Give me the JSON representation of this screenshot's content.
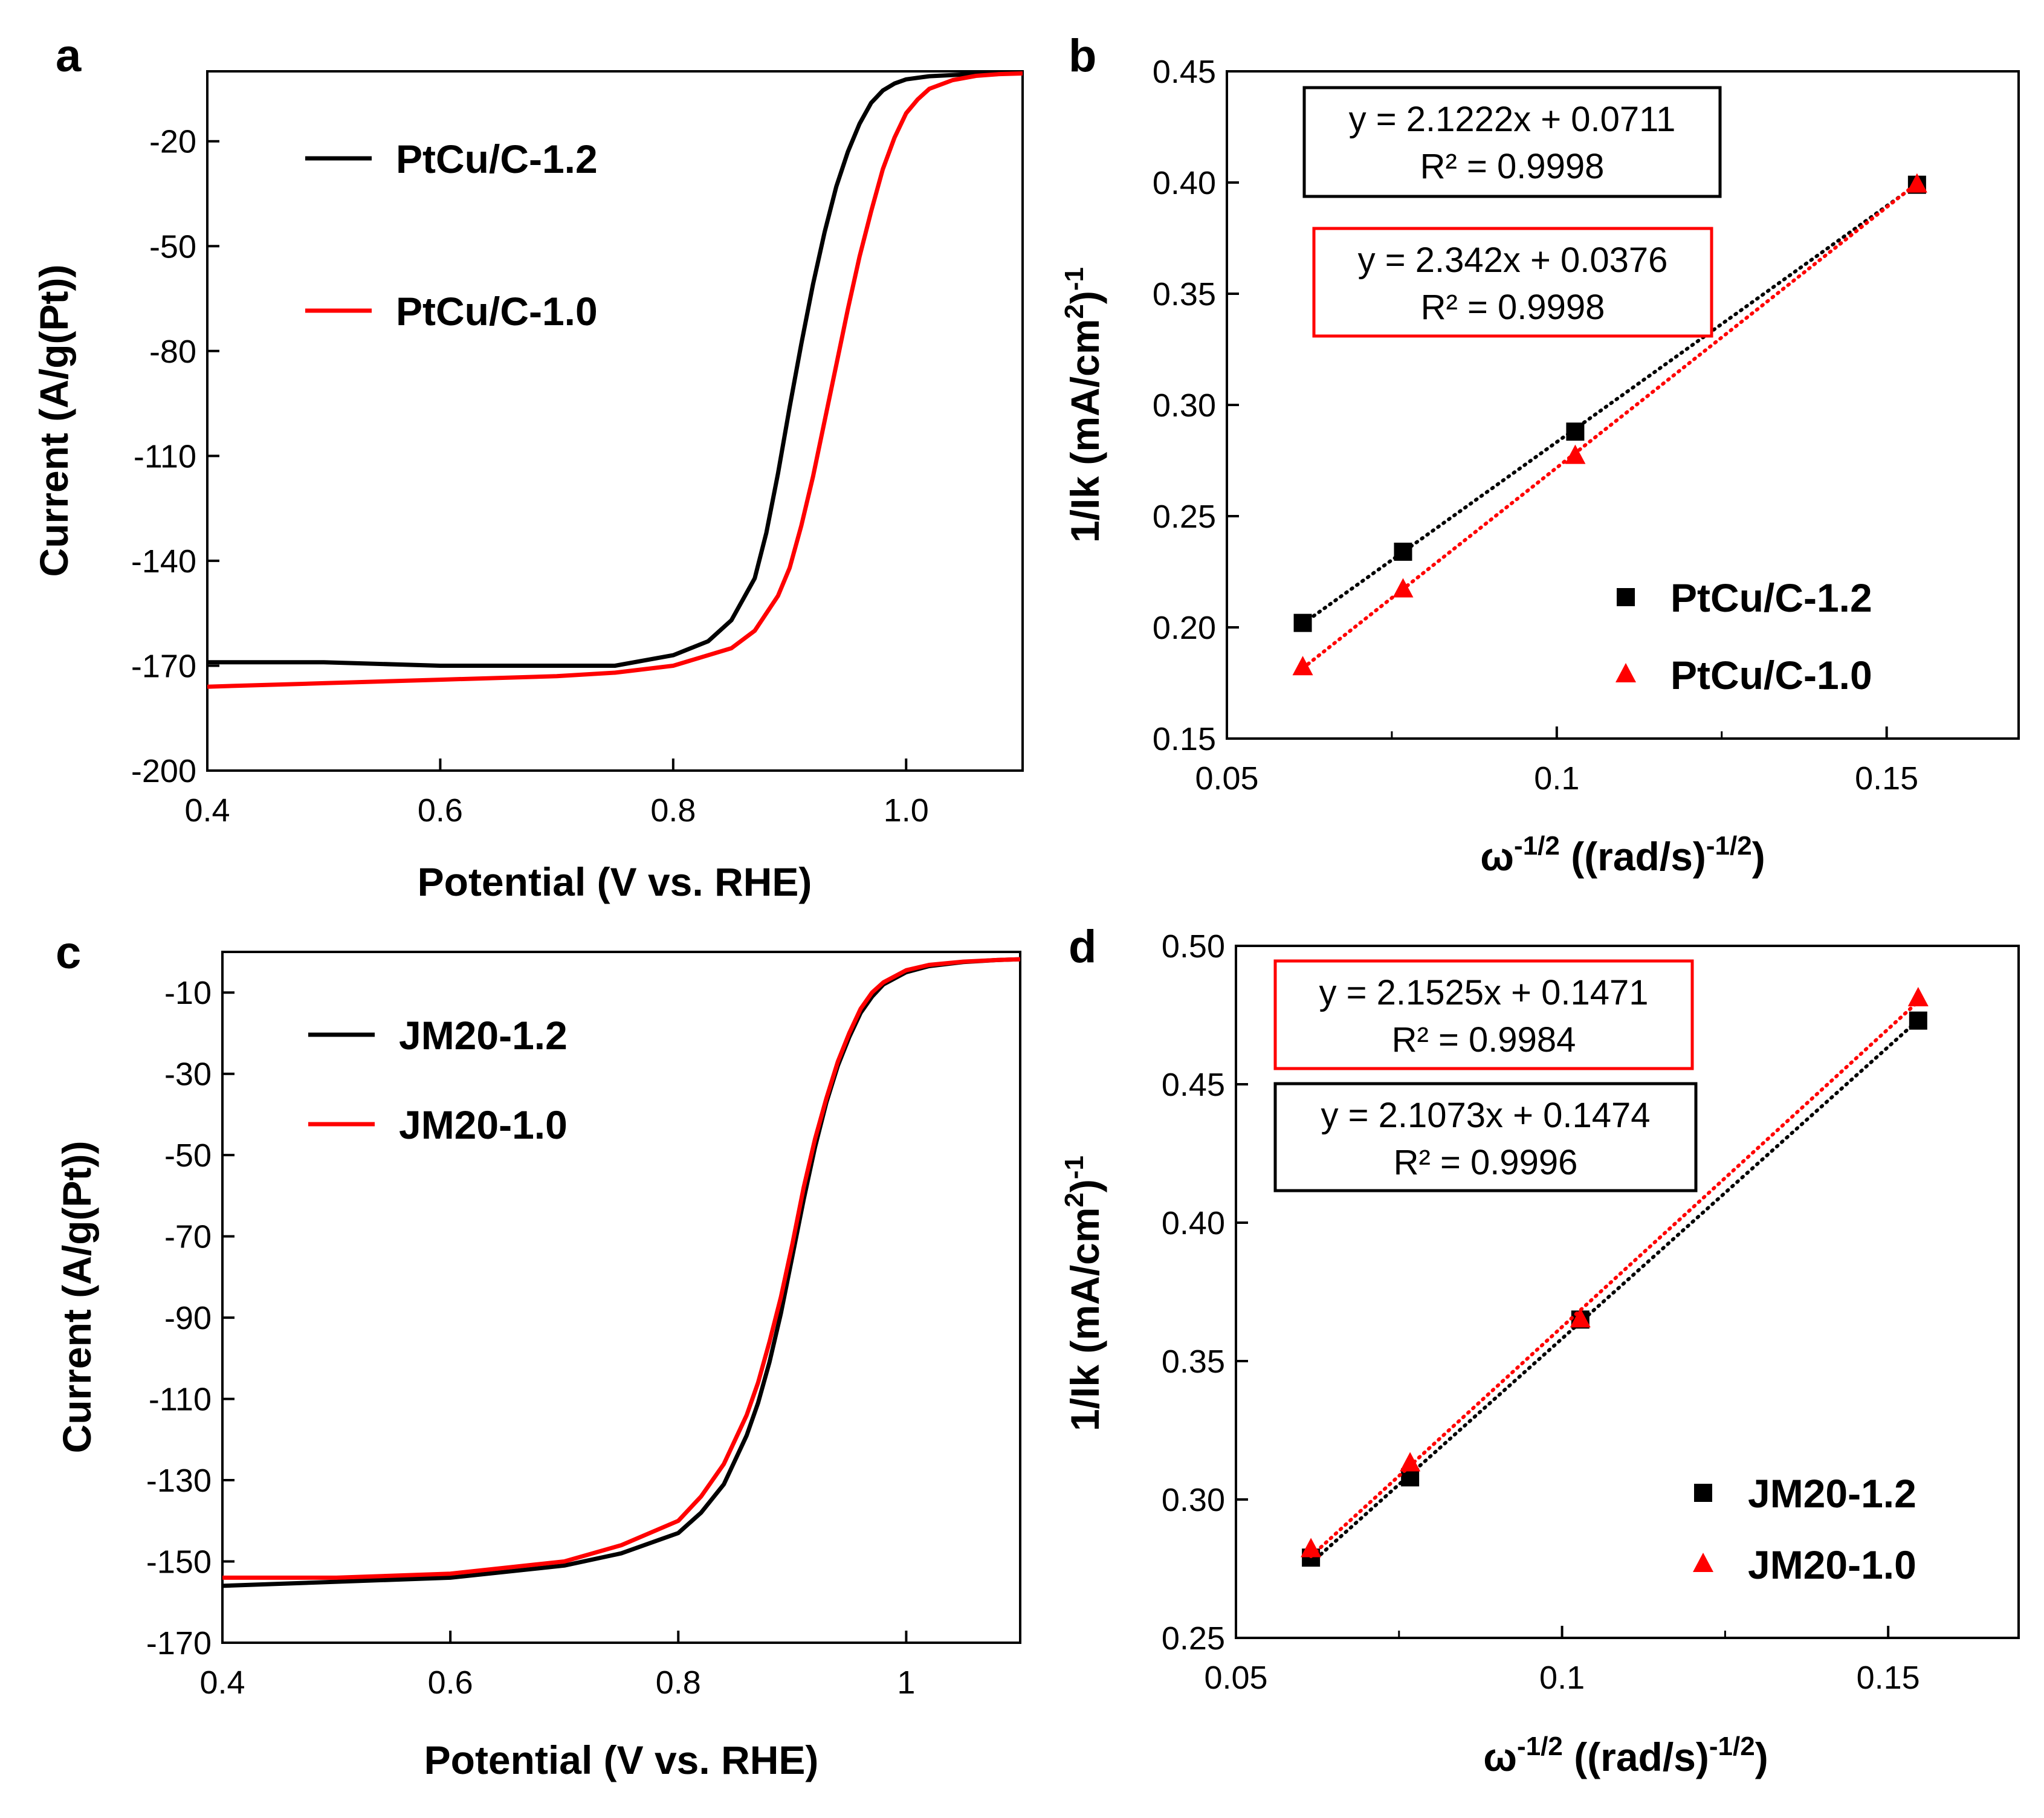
{
  "colors": {
    "series_black": "#000000",
    "series_red": "#ff0000"
  },
  "chart_data": [
    {
      "panel": "a",
      "type": "line",
      "xlabel": "Potential (V vs. RHE)",
      "ylabel": "Current (A/g(Pt))",
      "xlim": [
        0.4,
        1.1
      ],
      "ylim": [
        -200,
        0
      ],
      "xticks": [
        0.4,
        0.6,
        0.8,
        1.0
      ],
      "xtick_labels": [
        "0.4",
        "0.6",
        "0.8",
        "1.0"
      ],
      "yticks": [
        -20,
        -50,
        -80,
        -110,
        -140,
        -170,
        -200
      ],
      "ytick_labels": [
        "-20",
        "-50",
        "-80",
        "-110",
        "-140",
        "-170",
        "-200"
      ],
      "legend": [
        "PtCu/C-1.2",
        "PtCu/C-1.0"
      ],
      "series": [
        {
          "name": "PtCu/C-1.2",
          "color": "#000000",
          "x": [
            0.4,
            0.5,
            0.6,
            0.7,
            0.75,
            0.8,
            0.83,
            0.85,
            0.87,
            0.88,
            0.89,
            0.9,
            0.91,
            0.92,
            0.93,
            0.94,
            0.95,
            0.96,
            0.97,
            0.98,
            0.99,
            1.0,
            1.02,
            1.05,
            1.08,
            1.1
          ],
          "y": [
            -169,
            -169,
            -170,
            -170,
            -170,
            -167,
            -163,
            -157,
            -145,
            -132,
            -115,
            -96,
            -78,
            -61,
            -46,
            -33,
            -23,
            -15,
            -9,
            -5.5,
            -3.5,
            -2.3,
            -1.4,
            -0.9,
            -0.6,
            -0.5
          ]
        },
        {
          "name": "PtCu/C-1.0",
          "color": "#ff0000",
          "x": [
            0.4,
            0.5,
            0.6,
            0.7,
            0.75,
            0.8,
            0.85,
            0.87,
            0.89,
            0.9,
            0.91,
            0.92,
            0.93,
            0.94,
            0.95,
            0.96,
            0.97,
            0.98,
            0.99,
            1.0,
            1.01,
            1.02,
            1.04,
            1.06,
            1.08,
            1.1
          ],
          "y": [
            -176,
            -175,
            -174,
            -173,
            -172,
            -170,
            -165,
            -160,
            -150,
            -142,
            -130,
            -116,
            -100,
            -84,
            -68,
            -53,
            -40,
            -28,
            -19,
            -12,
            -8,
            -5,
            -2.5,
            -1.3,
            -0.8,
            -0.6
          ]
        }
      ]
    },
    {
      "panel": "b",
      "type": "scatter",
      "xlabel": "ω-1/2 ((rad/s)-1/2)",
      "ylabel": "1/Ik (mA/cm2)-1",
      "xlim": [
        0.05,
        0.17
      ],
      "ylim": [
        0.15,
        0.45
      ],
      "xticks": [
        0.05,
        0.1,
        0.15
      ],
      "xtick_labels": [
        "0.05",
        "0.1",
        "0.15"
      ],
      "yticks": [
        0.15,
        0.2,
        0.25,
        0.3,
        0.35,
        0.4,
        0.45
      ],
      "ytick_labels": [
        "0.15",
        "0.20",
        "0.25",
        "0.30",
        "0.35",
        "0.40",
        "0.45"
      ],
      "legend": [
        "PtCu/C-1.2",
        "PtCu/C-1.0"
      ],
      "series": [
        {
          "name": "PtCu/C-1.2",
          "color": "#000000",
          "marker": "square",
          "x": [
            0.0615,
            0.0767,
            0.1028,
            0.1546
          ],
          "y": [
            0.202,
            0.234,
            0.288,
            0.399
          ],
          "fit": {
            "slope": 2.1222,
            "intercept": 0.0711,
            "equation": "y = 2.1222x + 0.0711",
            "r2": "R² = 0.9998"
          }
        },
        {
          "name": "PtCu/C-1.0",
          "color": "#ff0000",
          "marker": "triangle",
          "x": [
            0.0615,
            0.0767,
            0.1028,
            0.1546
          ],
          "y": [
            0.182,
            0.217,
            0.277,
            0.399
          ],
          "fit": {
            "slope": 2.342,
            "intercept": 0.0376,
            "equation": "y = 2.342x + 0.0376",
            "r2": "R² = 0.9998"
          }
        }
      ]
    },
    {
      "panel": "c",
      "type": "line",
      "xlabel": "Potential (V vs. RHE)",
      "ylabel": "Current (A/g(Pt))",
      "xlim": [
        0.4,
        1.1
      ],
      "ylim": [
        -170,
        0
      ],
      "xticks": [
        0.4,
        0.6,
        0.8,
        1.0
      ],
      "xtick_labels": [
        "0.4",
        "0.6",
        "0.8",
        "1"
      ],
      "yticks": [
        -10,
        -30,
        -50,
        -70,
        -90,
        -110,
        -130,
        -150,
        -170
      ],
      "ytick_labels": [
        "-10",
        "-30",
        "-50",
        "-70",
        "-90",
        "-110",
        "-130",
        "-150",
        "-170"
      ],
      "legend": [
        "JM20-1.2",
        "JM20-1.0"
      ],
      "series": [
        {
          "name": "JM20-1.2",
          "color": "#000000",
          "x": [
            0.4,
            0.5,
            0.6,
            0.7,
            0.75,
            0.8,
            0.82,
            0.84,
            0.86,
            0.87,
            0.88,
            0.89,
            0.9,
            0.91,
            0.92,
            0.93,
            0.94,
            0.95,
            0.96,
            0.97,
            0.98,
            1.0,
            1.02,
            1.05,
            1.08,
            1.1
          ],
          "y": [
            -156,
            -155,
            -154,
            -151,
            -148,
            -143,
            -138,
            -131,
            -119,
            -111,
            -101,
            -89,
            -75,
            -61,
            -48,
            -37,
            -28,
            -21,
            -15,
            -11,
            -8,
            -5,
            -3.5,
            -2.5,
            -2,
            -1.8
          ]
        },
        {
          "name": "JM20-1.0",
          "color": "#ff0000",
          "x": [
            0.4,
            0.5,
            0.6,
            0.7,
            0.75,
            0.8,
            0.82,
            0.84,
            0.86,
            0.87,
            0.88,
            0.89,
            0.9,
            0.91,
            0.92,
            0.93,
            0.94,
            0.95,
            0.96,
            0.97,
            0.98,
            1.0,
            1.02,
            1.05,
            1.08,
            1.1
          ],
          "y": [
            -154,
            -154,
            -153,
            -150,
            -146,
            -140,
            -134,
            -126,
            -114,
            -106,
            -96,
            -85,
            -72,
            -58,
            -46,
            -36,
            -27,
            -20,
            -14,
            -10,
            -7.5,
            -4.5,
            -3.2,
            -2.4,
            -2,
            -1.8
          ]
        }
      ]
    },
    {
      "panel": "d",
      "type": "scatter",
      "xlabel": "ω-1/2 ((rad/s)-1/2)",
      "ylabel": "1/Ik (mA/cm2)-1",
      "xlim": [
        0.05,
        0.17
      ],
      "ylim": [
        0.25,
        0.5
      ],
      "xticks": [
        0.05,
        0.1,
        0.15
      ],
      "xtick_labels": [
        "0.05",
        "0.1",
        "0.15"
      ],
      "yticks": [
        0.25,
        0.3,
        0.35,
        0.4,
        0.45,
        0.5
      ],
      "ytick_labels": [
        "0.25",
        "0.30",
        "0.35",
        "0.40",
        "0.45",
        "0.50"
      ],
      "legend": [
        "JM20-1.2",
        "JM20-1.0"
      ],
      "series": [
        {
          "name": "JM20-1.2",
          "color": "#000000",
          "marker": "square",
          "x": [
            0.0615,
            0.0767,
            0.1028,
            0.1546
          ],
          "y": [
            0.279,
            0.308,
            0.365,
            0.473
          ],
          "fit": {
            "slope": 2.1073,
            "intercept": 0.1474,
            "equation": "y = 2.1073x + 0.1474",
            "r2": "R² = 0.9996"
          }
        },
        {
          "name": "JM20-1.0",
          "color": "#ff0000",
          "marker": "triangle",
          "x": [
            0.0615,
            0.0767,
            0.1028,
            0.1546
          ],
          "y": [
            0.282,
            0.313,
            0.365,
            0.481
          ],
          "fit": {
            "slope": 2.1525,
            "intercept": 0.1471,
            "equation": "y = 2.1525x + 0.1471",
            "r2": "R² = 0.9984"
          }
        }
      ]
    }
  ]
}
